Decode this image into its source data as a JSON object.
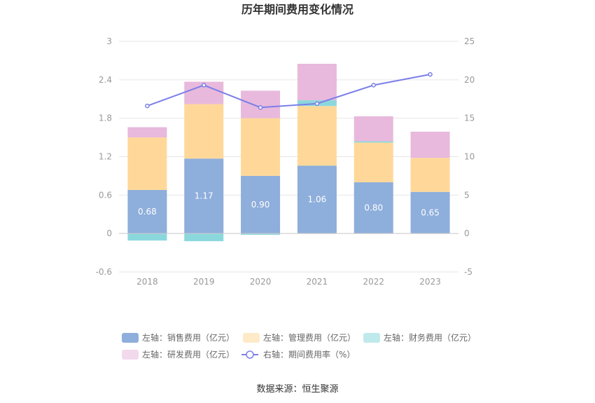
{
  "chart_data": {
    "type": "bar",
    "stacked": true,
    "title": "历年期间费用变化情况",
    "categories": [
      "2018",
      "2019",
      "2020",
      "2021",
      "2022",
      "2023"
    ],
    "series": [
      {
        "name": "左轴：销售费用（亿元）",
        "axis": "left",
        "color": "#8eaedb",
        "values": [
          0.68,
          1.17,
          0.9,
          1.06,
          0.8,
          0.65
        ],
        "labels": [
          "0.68",
          "1.17",
          "0.90",
          "1.06",
          "0.80",
          "0.65"
        ]
      },
      {
        "name": "左轴：管理费用（亿元）",
        "axis": "left",
        "color": "#ffd899",
        "values": [
          0.82,
          0.85,
          0.9,
          0.93,
          0.62,
          0.53
        ]
      },
      {
        "name": "左轴：财务费用（亿元）",
        "axis": "left",
        "color": "#8bd8dc",
        "values": [
          -0.11,
          -0.12,
          -0.02,
          0.09,
          0.02,
          0.0
        ]
      },
      {
        "name": "左轴：研发费用（亿元）",
        "axis": "left",
        "color": "#e8b9dc",
        "values": [
          0.16,
          0.35,
          0.43,
          0.57,
          0.39,
          0.41
        ]
      },
      {
        "name": "右轴：期间费用率（%）",
        "axis": "right",
        "type": "line",
        "color": "#7b7fe8",
        "values": [
          16.6,
          19.3,
          16.4,
          16.9,
          19.3,
          20.7
        ]
      }
    ],
    "y_left": {
      "min": -0.6,
      "max": 3,
      "ticks": [
        "-0.6",
        "0",
        "0.6",
        "1.2",
        "1.8",
        "2.4",
        "3"
      ]
    },
    "y_right": {
      "min": -5,
      "max": 25,
      "ticks": [
        "-5",
        "0",
        "5",
        "10",
        "15",
        "20",
        "25"
      ]
    },
    "grid": true,
    "legend_position": "bottom"
  },
  "source": "数据来源：恒生聚源"
}
